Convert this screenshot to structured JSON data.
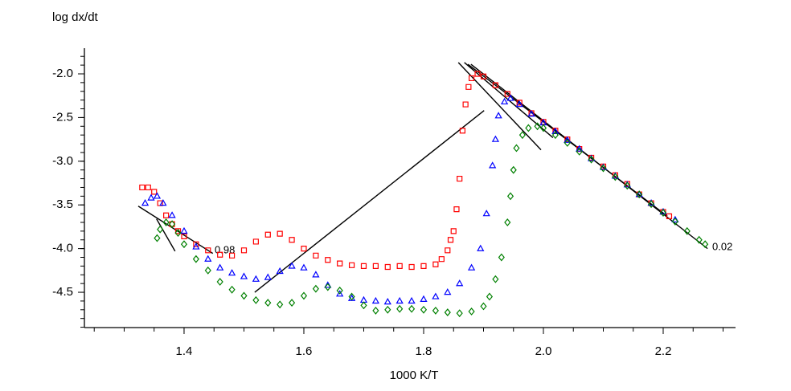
{
  "chart_data": {
    "type": "scatter",
    "y_label": "log dx/dt",
    "x_label": "1000 K/T",
    "xlim": [
      1.2336,
      2.3208
    ],
    "ylim": [
      -4.904,
      -1.706
    ],
    "xticks": [
      1.4,
      1.6,
      1.8,
      {
        "value": 2.0,
        "label": "2.0"
      },
      2.2
    ],
    "yticks": [
      {
        "value": -2.0,
        "label": "-2.0"
      },
      -2.5,
      {
        "value": -3.0,
        "label": "-3.0"
      },
      -3.5,
      {
        "value": -4.0,
        "label": "-4.0"
      },
      -4.5
    ],
    "grid": false,
    "series": [
      {
        "color": "#ff0000",
        "marker": "square",
        "x": [
          1.33,
          1.34,
          1.35,
          1.36,
          1.37,
          1.38,
          1.39,
          1.4,
          1.42,
          1.44,
          1.46,
          1.48,
          1.5,
          1.52,
          1.54,
          1.56,
          1.58,
          1.6,
          1.62,
          1.64,
          1.66,
          1.68,
          1.7,
          1.72,
          1.74,
          1.76,
          1.78,
          1.8,
          1.82,
          1.83,
          1.84,
          1.845,
          1.85,
          1.855,
          1.86,
          1.865,
          1.87,
          1.875,
          1.88,
          1.89,
          1.9,
          1.92,
          1.94,
          1.96,
          1.98,
          2.0,
          2.02,
          2.04,
          2.06,
          2.08,
          2.1,
          2.12,
          2.14,
          2.16,
          2.18,
          2.2,
          2.21
        ],
        "values": [
          -3.3,
          -3.3,
          -3.35,
          -3.48,
          -3.62,
          -3.72,
          -3.8,
          -3.86,
          -3.95,
          -4.02,
          -4.07,
          -4.08,
          -4.02,
          -3.92,
          -3.84,
          -3.83,
          -3.9,
          -4.0,
          -4.08,
          -4.13,
          -4.17,
          -4.19,
          -4.2,
          -4.2,
          -4.21,
          -4.2,
          -4.21,
          -4.2,
          -4.18,
          -4.12,
          -4.02,
          -3.9,
          -3.8,
          -3.55,
          -3.2,
          -2.65,
          -2.35,
          -2.15,
          -2.05,
          -2.0,
          -2.03,
          -2.13,
          -2.23,
          -2.33,
          -2.45,
          -2.55,
          -2.65,
          -2.75,
          -2.86,
          -2.96,
          -3.06,
          -3.16,
          -3.26,
          -3.38,
          -3.48,
          -3.58,
          -3.63
        ]
      },
      {
        "color": "#0000ff",
        "marker": "triangle",
        "x": [
          1.335,
          1.345,
          1.355,
          1.365,
          1.38,
          1.4,
          1.42,
          1.44,
          1.46,
          1.48,
          1.5,
          1.52,
          1.54,
          1.56,
          1.58,
          1.6,
          1.62,
          1.64,
          1.66,
          1.68,
          1.7,
          1.72,
          1.74,
          1.76,
          1.78,
          1.8,
          1.82,
          1.84,
          1.86,
          1.88,
          1.895,
          1.905,
          1.915,
          1.92,
          1.925,
          1.935,
          1.945,
          1.96,
          1.98,
          2.0,
          2.02,
          2.04,
          2.06,
          2.08,
          2.1,
          2.12,
          2.14,
          2.16,
          2.18,
          2.2,
          2.22
        ],
        "values": [
          -3.48,
          -3.42,
          -3.4,
          -3.48,
          -3.62,
          -3.8,
          -3.98,
          -4.12,
          -4.22,
          -4.28,
          -4.32,
          -4.35,
          -4.33,
          -4.26,
          -4.2,
          -4.22,
          -4.3,
          -4.42,
          -4.52,
          -4.57,
          -4.59,
          -4.6,
          -4.61,
          -4.6,
          -4.6,
          -4.58,
          -4.55,
          -4.5,
          -4.4,
          -4.22,
          -4.0,
          -3.6,
          -3.05,
          -2.75,
          -2.48,
          -2.32,
          -2.28,
          -2.35,
          -2.46,
          -2.56,
          -2.66,
          -2.76,
          -2.86,
          -2.97,
          -3.07,
          -3.17,
          -3.27,
          -3.38,
          -3.48,
          -3.58,
          -3.67
        ]
      },
      {
        "color": "#008000",
        "marker": "diamond",
        "x": [
          1.355,
          1.36,
          1.37,
          1.38,
          1.39,
          1.4,
          1.42,
          1.44,
          1.46,
          1.48,
          1.5,
          1.52,
          1.54,
          1.56,
          1.58,
          1.6,
          1.62,
          1.64,
          1.66,
          1.68,
          1.7,
          1.72,
          1.74,
          1.76,
          1.78,
          1.8,
          1.82,
          1.84,
          1.86,
          1.88,
          1.9,
          1.91,
          1.92,
          1.93,
          1.94,
          1.945,
          1.95,
          1.955,
          1.965,
          1.975,
          1.99,
          2.0,
          2.02,
          2.04,
          2.06,
          2.08,
          2.1,
          2.12,
          2.14,
          2.16,
          2.18,
          2.2,
          2.22,
          2.24,
          2.26,
          2.27
        ],
        "values": [
          -3.88,
          -3.78,
          -3.7,
          -3.72,
          -3.82,
          -3.95,
          -4.12,
          -4.25,
          -4.38,
          -4.47,
          -4.54,
          -4.59,
          -4.62,
          -4.64,
          -4.62,
          -4.54,
          -4.46,
          -4.44,
          -4.48,
          -4.55,
          -4.65,
          -4.71,
          -4.7,
          -4.69,
          -4.69,
          -4.7,
          -4.71,
          -4.73,
          -4.74,
          -4.72,
          -4.66,
          -4.55,
          -4.35,
          -4.1,
          -3.7,
          -3.4,
          -3.1,
          -2.85,
          -2.7,
          -2.62,
          -2.6,
          -2.62,
          -2.7,
          -2.79,
          -2.89,
          -2.98,
          -3.08,
          -3.18,
          -3.28,
          -3.38,
          -3.49,
          -3.59,
          -3.69,
          -3.8,
          -3.9,
          -3.95
        ]
      }
    ],
    "fit_lines": [
      {
        "x": [
          1.3235,
          1.448
        ],
        "values": [
          -3.514,
          -4.055
        ]
      },
      {
        "x": [
          1.354,
          1.385
        ],
        "values": [
          -3.66,
          -4.03
        ]
      },
      {
        "x": [
          1.518,
          1.901
        ],
        "values": [
          -4.5,
          -2.42
        ]
      },
      {
        "x": [
          1.858,
          1.996
        ],
        "values": [
          -1.87,
          -2.87
        ]
      },
      {
        "x": [
          1.868,
          2.016
        ],
        "values": [
          -1.87,
          -2.73
        ]
      },
      {
        "x": [
          1.874,
          2.207
        ],
        "values": [
          -1.89,
          -3.63
        ]
      },
      {
        "x": [
          1.879,
          2.274
        ],
        "values": [
          -1.89,
          -4.0
        ]
      }
    ],
    "annotations": [
      "0.98",
      "0.02"
    ]
  }
}
